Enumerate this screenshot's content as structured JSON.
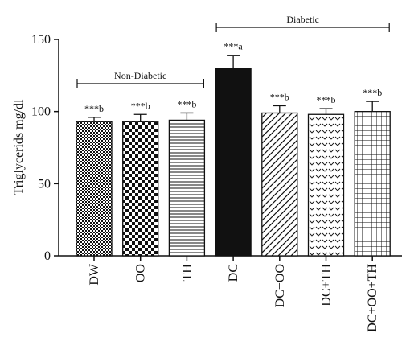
{
  "chart_data": {
    "type": "bar",
    "ylabel": "Triglycerids mg/dl",
    "xlabel": "",
    "title": "",
    "ylim": [
      0,
      150
    ],
    "yticks": [
      0,
      50,
      100,
      150
    ],
    "categories": [
      "DW",
      "OO",
      "TH",
      "DC",
      "DC+OO",
      "DC+TH",
      "DC+OO+TH"
    ],
    "values": [
      93,
      93,
      94,
      130,
      99,
      98,
      100
    ],
    "errors": [
      3,
      5,
      5,
      9,
      5,
      4,
      7
    ],
    "annotations": [
      "***b",
      "***b",
      "***b",
      "***a",
      "***b",
      "***b",
      "***b"
    ],
    "patterns": [
      "fine-checker",
      "checker",
      "horizontal-lines",
      "solid",
      "diagonal-lines",
      "chevron",
      "grid"
    ],
    "groups": [
      {
        "label": "Non-Diabetic",
        "start": 0,
        "end": 2
      },
      {
        "label": "Diabetic",
        "start": 3,
        "end": 6
      }
    ],
    "grid": false,
    "legend": "none"
  }
}
